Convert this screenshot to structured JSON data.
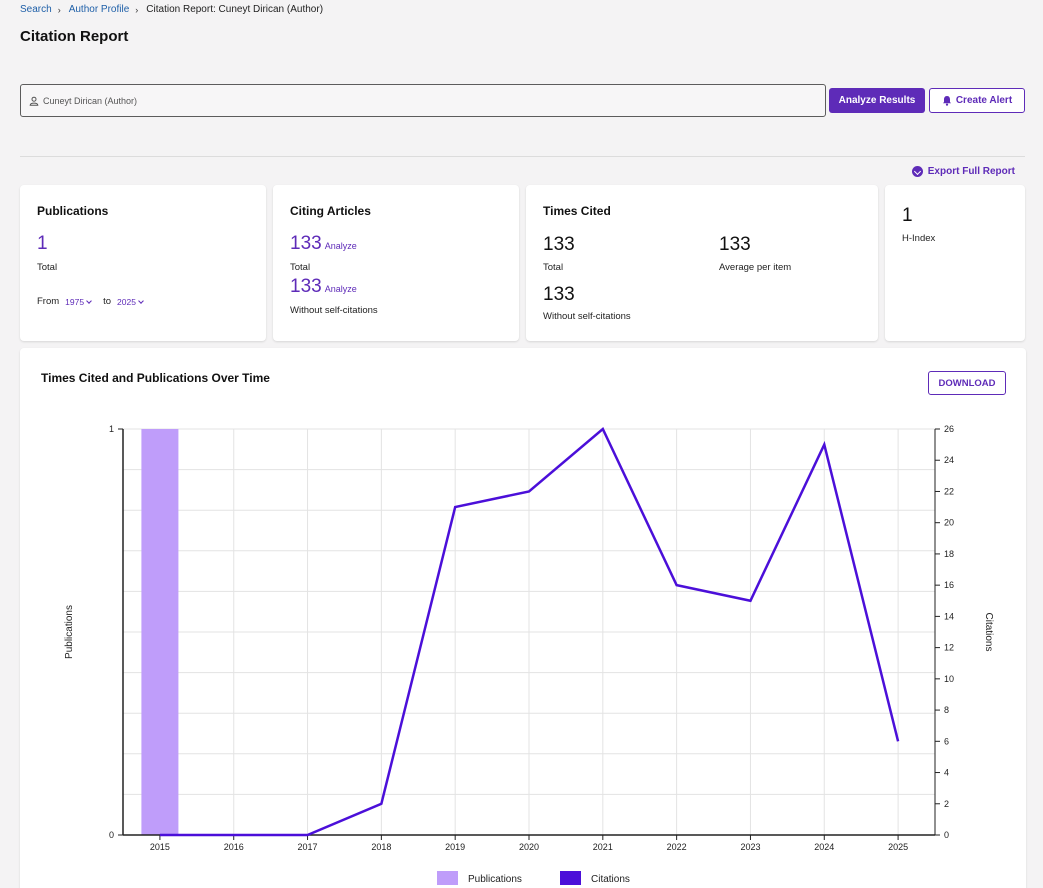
{
  "breadcrumb": {
    "search": "Search",
    "author_profile": "Author Profile",
    "current": "Citation Report: Cuneyt Dirican (Author)"
  },
  "page_title": "Citation Report",
  "search": {
    "value": "Cuneyt Dirican (Author)"
  },
  "buttons": {
    "analyze": "Analyze Results",
    "create_alert": "Create Alert",
    "export": "Export Full Report",
    "download": "DOWNLOAD"
  },
  "cards": {
    "publications": {
      "title": "Publications",
      "value": "1",
      "label": "Total",
      "from_label": "From",
      "from_value": "1975",
      "to_label": "to",
      "to_value": "2025"
    },
    "citing": {
      "title": "Citing Articles",
      "total_value": "133",
      "total_label": "Total",
      "without_value": "133",
      "without_label": "Without self-citations",
      "analyze": "Analyze"
    },
    "times_cited": {
      "title": "Times Cited",
      "total_value": "133",
      "total_label": "Total",
      "avg_value": "133",
      "avg_label": "Average per item",
      "without_value": "133",
      "without_label": "Without self-citations"
    },
    "hindex": {
      "value": "1",
      "label": "H-Index"
    }
  },
  "chart_title": "Times Cited and Publications Over Time",
  "colors": {
    "accent": "#5e2bb8",
    "publications": "#bf9dfa",
    "citations": "#4b0fd9"
  },
  "chart_data": {
    "type": "bar+line",
    "x": [
      "2015",
      "2016",
      "2017",
      "2018",
      "2019",
      "2020",
      "2021",
      "2022",
      "2023",
      "2024",
      "2025"
    ],
    "series": [
      {
        "name": "Publications",
        "type": "bar",
        "axis": "left",
        "values": [
          1,
          0,
          0,
          0,
          0,
          0,
          0,
          0,
          0,
          0,
          0
        ]
      },
      {
        "name": "Citations",
        "type": "line",
        "axis": "right",
        "values": [
          0,
          0,
          0,
          2,
          21,
          22,
          26,
          16,
          15,
          25,
          6
        ]
      }
    ],
    "left_axis": {
      "label": "Publications",
      "range": [
        0,
        1
      ],
      "ticks": [
        "0",
        "1"
      ]
    },
    "right_axis": {
      "label": "Citations",
      "range": [
        0,
        26
      ],
      "ticks": [
        "0",
        "2",
        "4",
        "6",
        "8",
        "10",
        "12",
        "14",
        "16",
        "18",
        "20",
        "22",
        "24",
        "26"
      ]
    },
    "legend": {
      "placement": "bottom",
      "items": [
        "Publications",
        "Citations"
      ]
    },
    "grid": true
  }
}
